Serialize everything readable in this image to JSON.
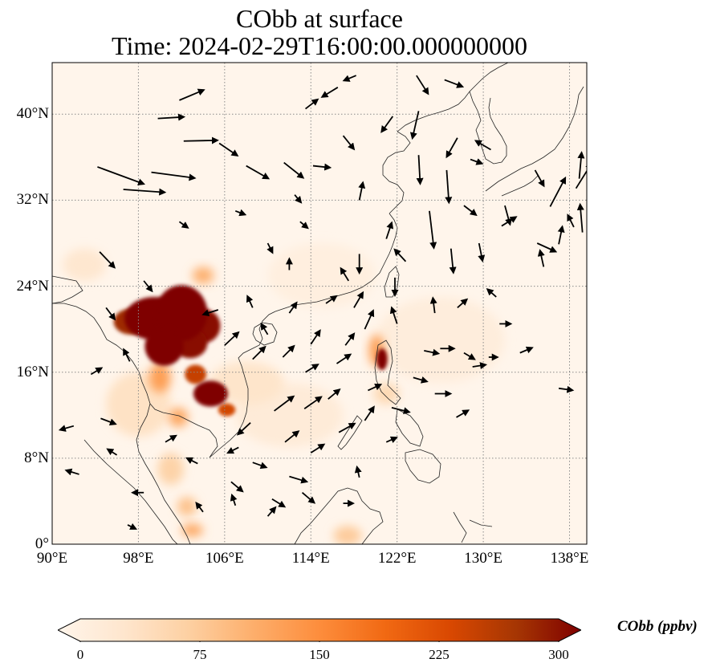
{
  "title": {
    "line1": "CObb at surface",
    "line2": "Time: 2024-02-29T16:00:00.000000000"
  },
  "map": {
    "lon_range": [
      90,
      139.6
    ],
    "lat_range": [
      0,
      44.8
    ],
    "lon_ticks": [
      {
        "value": 90,
        "label": "90°E"
      },
      {
        "value": 98,
        "label": "98°E"
      },
      {
        "value": 106,
        "label": "106°E"
      },
      {
        "value": 114,
        "label": "114°E"
      },
      {
        "value": 122,
        "label": "122°E"
      },
      {
        "value": 130,
        "label": "130°E"
      },
      {
        "value": 138,
        "label": "138°E"
      }
    ],
    "lat_ticks": [
      {
        "value": 0,
        "label": "0°"
      },
      {
        "value": 8,
        "label": "8°N"
      },
      {
        "value": 16,
        "label": "16°N"
      },
      {
        "value": 24,
        "label": "24°N"
      },
      {
        "value": 32,
        "label": "32°N"
      },
      {
        "value": 40,
        "label": "40°N"
      }
    ],
    "hotspots": [
      {
        "lon": 99.5,
        "lat": 21.0,
        "rlon": 2.8,
        "rlat": 2.0,
        "value": 300
      },
      {
        "lon": 102.0,
        "lat": 21.5,
        "rlon": 2.4,
        "rlat": 2.6,
        "value": 300
      },
      {
        "lon": 104.0,
        "lat": 20.3,
        "rlon": 1.6,
        "rlat": 1.6,
        "value": 290
      },
      {
        "lon": 97.3,
        "lat": 20.7,
        "rlon": 1.6,
        "rlat": 1.2,
        "value": 270
      },
      {
        "lon": 100.4,
        "lat": 18.4,
        "rlon": 1.8,
        "rlat": 1.8,
        "value": 300
      },
      {
        "lon": 102.8,
        "lat": 18.7,
        "rlon": 1.6,
        "rlat": 1.4,
        "value": 290
      },
      {
        "lon": 104.7,
        "lat": 14.0,
        "rlon": 1.6,
        "rlat": 1.2,
        "value": 300
      },
      {
        "lon": 103.3,
        "lat": 15.8,
        "rlon": 1.0,
        "rlat": 0.9,
        "value": 240
      },
      {
        "lon": 106.2,
        "lat": 12.5,
        "rlon": 0.8,
        "rlat": 0.6,
        "value": 230
      },
      {
        "lon": 100.0,
        "lat": 15.5,
        "rlon": 1.0,
        "rlat": 1.4,
        "value": 130
      },
      {
        "lon": 101.7,
        "lat": 11.8,
        "rlon": 0.9,
        "rlat": 0.9,
        "value": 120
      },
      {
        "lon": 104.0,
        "lat": 25.0,
        "rlon": 1.0,
        "rlat": 0.8,
        "value": 110
      },
      {
        "lon": 120.6,
        "lat": 17.2,
        "rlon": 0.5,
        "rlat": 1.0,
        "value": 300
      },
      {
        "lon": 120.1,
        "lat": 18.0,
        "rlon": 0.7,
        "rlat": 1.5,
        "value": 130
      },
      {
        "lon": 101.0,
        "lat": 7.0,
        "rlon": 1.2,
        "rlat": 1.5,
        "value": 70
      },
      {
        "lon": 102.5,
        "lat": 3.5,
        "rlon": 0.9,
        "rlat": 0.9,
        "value": 90
      },
      {
        "lon": 103.0,
        "lat": 1.3,
        "rlon": 1.0,
        "rlat": 0.6,
        "value": 120
      },
      {
        "lon": 117.4,
        "lat": 0.8,
        "rlon": 1.3,
        "rlat": 0.9,
        "value": 80
      },
      {
        "lon": 121.0,
        "lat": 14.0,
        "rlon": 1.2,
        "rlat": 1.0,
        "value": 60
      },
      {
        "lon": 108.0,
        "lat": 15.0,
        "rlon": 3.5,
        "rlat": 2.0,
        "value": 40
      },
      {
        "lon": 98.0,
        "lat": 13.0,
        "rlon": 3.0,
        "rlat": 3.0,
        "value": 45
      },
      {
        "lon": 112.0,
        "lat": 12.0,
        "rlon": 5.0,
        "rlat": 3.0,
        "value": 25
      },
      {
        "lon": 126.0,
        "lat": 19.0,
        "rlon": 6.0,
        "rlat": 4.0,
        "value": 20
      },
      {
        "lon": 93.0,
        "lat": 26.0,
        "rlon": 2.0,
        "rlat": 1.5,
        "value": 35
      },
      {
        "lon": 115.0,
        "lat": 25.0,
        "rlon": 5.0,
        "rlat": 3.0,
        "value": 15
      }
    ],
    "wind_vectors": [
      {
        "lon": 94.2,
        "lat": 35.1,
        "u": 6.5,
        "v": -2.4
      },
      {
        "lon": 99.2,
        "lat": 34.6,
        "u": 6.0,
        "v": -0.8
      },
      {
        "lon": 96.6,
        "lat": 33.0,
        "u": 5.7,
        "v": -0.4
      },
      {
        "lon": 99.8,
        "lat": 39.6,
        "u": 3.3,
        "v": 0.2
      },
      {
        "lon": 102.2,
        "lat": 37.5,
        "u": 4.5,
        "v": 0.1
      },
      {
        "lon": 101.8,
        "lat": 41.3,
        "u": 3.1,
        "v": 1.3
      },
      {
        "lon": 94.4,
        "lat": 27.2,
        "u": 1.8,
        "v": -1.9
      },
      {
        "lon": 105.5,
        "lat": 37.3,
        "u": 2.2,
        "v": -1.5
      },
      {
        "lon": 108.0,
        "lat": 35.2,
        "u": 2.8,
        "v": -1.6
      },
      {
        "lon": 111.5,
        "lat": 35.5,
        "u": 2.4,
        "v": -1.9
      },
      {
        "lon": 114.2,
        "lat": 35.2,
        "u": 1.9,
        "v": -0.2
      },
      {
        "lon": 117.0,
        "lat": 38.0,
        "u": 1.2,
        "v": -1.5
      },
      {
        "lon": 113.5,
        "lat": 40.5,
        "u": 1.3,
        "v": 1.0
      },
      {
        "lon": 116.5,
        "lat": 42.5,
        "u": -1.8,
        "v": -1.1
      },
      {
        "lon": 118.2,
        "lat": 43.6,
        "u": -1.2,
        "v": -0.5
      },
      {
        "lon": 121.6,
        "lat": 39.8,
        "u": -1.3,
        "v": -1.8
      },
      {
        "lon": 124.0,
        "lat": 40.3,
        "u": -0.8,
        "v": -3.5
      },
      {
        "lon": 123.8,
        "lat": 43.6,
        "u": 1.4,
        "v": -2.2
      },
      {
        "lon": 126.4,
        "lat": 43.2,
        "u": 2.1,
        "v": -0.8
      },
      {
        "lon": 126.6,
        "lat": 34.8,
        "u": 0.3,
        "v": -4.3
      },
      {
        "lon": 125.0,
        "lat": 31.0,
        "u": 0.6,
        "v": -5.0
      },
      {
        "lon": 124.0,
        "lat": 36.2,
        "u": 0.2,
        "v": -3.7
      },
      {
        "lon": 127.6,
        "lat": 37.8,
        "u": -1.3,
        "v": -2.3
      },
      {
        "lon": 128.8,
        "lat": 35.8,
        "u": 1.1,
        "v": -0.4
      },
      {
        "lon": 127.0,
        "lat": 27.5,
        "u": 0.3,
        "v": -3.0
      },
      {
        "lon": 129.6,
        "lat": 28.0,
        "u": 0.4,
        "v": -2.0
      },
      {
        "lon": 128.2,
        "lat": 31.5,
        "u": 1.3,
        "v": -1.0
      },
      {
        "lon": 132.0,
        "lat": 31.5,
        "u": 0.6,
        "v": -2.2
      },
      {
        "lon": 130.7,
        "lat": 36.7,
        "u": -1.7,
        "v": 1.0
      },
      {
        "lon": 134.8,
        "lat": 34.8,
        "u": 1.0,
        "v": -1.8
      },
      {
        "lon": 135.0,
        "lat": 28.0,
        "u": 2.2,
        "v": -1.0
      },
      {
        "lon": 136.2,
        "lat": 31.4,
        "u": 2.0,
        "v": 3.8
      },
      {
        "lon": 138.6,
        "lat": 33.1,
        "u": 2.0,
        "v": 3.2
      },
      {
        "lon": 138.9,
        "lat": 34.0,
        "u": 0.3,
        "v": 3.3
      },
      {
        "lon": 137.0,
        "lat": 27.9,
        "u": 0.4,
        "v": 2.0
      },
      {
        "lon": 139.2,
        "lat": 29.0,
        "u": -0.3,
        "v": 3.6
      },
      {
        "lon": 138.4,
        "lat": 29.5,
        "u": -0.6,
        "v": 1.2
      },
      {
        "lon": 135.6,
        "lat": 25.8,
        "u": -0.4,
        "v": 1.8
      },
      {
        "lon": 131.7,
        "lat": 29.6,
        "u": 1.6,
        "v": 1.0
      },
      {
        "lon": 118.5,
        "lat": 32.0,
        "u": 0.4,
        "v": 2.0
      },
      {
        "lon": 118.5,
        "lat": 27.0,
        "u": 0.0,
        "v": -2.2
      },
      {
        "lon": 121.0,
        "lat": 28.4,
        "u": 0.6,
        "v": 1.8
      },
      {
        "lon": 121.8,
        "lat": 24.8,
        "u": 0.0,
        "v": -2.0
      },
      {
        "lon": 122.8,
        "lat": 26.3,
        "u": -1.2,
        "v": 1.3
      },
      {
        "lon": 119.0,
        "lat": 20.0,
        "u": 1.0,
        "v": 2.2
      },
      {
        "lon": 118.0,
        "lat": 22.0,
        "u": 1.0,
        "v": 1.7
      },
      {
        "lon": 117.2,
        "lat": 18.5,
        "u": 0.9,
        "v": 1.2
      },
      {
        "lon": 112.0,
        "lat": 21.5,
        "u": 0.7,
        "v": 1.0
      },
      {
        "lon": 110.0,
        "lat": 19.5,
        "u": -0.6,
        "v": 1.0
      },
      {
        "lon": 108.6,
        "lat": 17.2,
        "u": 1.4,
        "v": 1.4
      },
      {
        "lon": 111.4,
        "lat": 17.4,
        "u": 1.2,
        "v": 1.2
      },
      {
        "lon": 113.5,
        "lat": 16.0,
        "u": 1.3,
        "v": 0.8
      },
      {
        "lon": 114.0,
        "lat": 18.6,
        "u": 1.0,
        "v": 1.5
      },
      {
        "lon": 116.4,
        "lat": 16.8,
        "u": 1.5,
        "v": 1.0
      },
      {
        "lon": 108.4,
        "lat": 11.3,
        "u": -1.4,
        "v": -1.3
      },
      {
        "lon": 110.6,
        "lat": 12.4,
        "u": 2.4,
        "v": 1.8
      },
      {
        "lon": 113.4,
        "lat": 12.6,
        "u": 2.0,
        "v": 1.4
      },
      {
        "lon": 115.6,
        "lat": 13.5,
        "u": 1.2,
        "v": 1.0
      },
      {
        "lon": 111.6,
        "lat": 9.5,
        "u": 1.5,
        "v": 1.2
      },
      {
        "lon": 114.0,
        "lat": 8.5,
        "u": 1.4,
        "v": 0.9
      },
      {
        "lon": 116.6,
        "lat": 10.4,
        "u": 1.8,
        "v": 1.0
      },
      {
        "lon": 112.0,
        "lat": 6.3,
        "u": 2.0,
        "v": -0.6
      },
      {
        "lon": 108.6,
        "lat": 7.6,
        "u": 1.4,
        "v": -0.5
      },
      {
        "lon": 106.6,
        "lat": 5.8,
        "u": 1.2,
        "v": -1.0
      },
      {
        "lon": 110.4,
        "lat": 4.2,
        "u": 1.3,
        "v": -0.8
      },
      {
        "lon": 113.2,
        "lat": 4.8,
        "u": 1.3,
        "v": -1.1
      },
      {
        "lon": 107.3,
        "lat": 9.0,
        "u": -1.0,
        "v": -0.5
      },
      {
        "lon": 110.0,
        "lat": 2.6,
        "u": 0.7,
        "v": 0.8
      },
      {
        "lon": 107.0,
        "lat": 3.6,
        "u": -0.3,
        "v": 0.9
      },
      {
        "lon": 117.0,
        "lat": 3.8,
        "u": 0.8,
        "v": 0.0
      },
      {
        "lon": 118.5,
        "lat": 6.2,
        "u": -0.2,
        "v": 0.9
      },
      {
        "lon": 119.0,
        "lat": 11.5,
        "u": 1.0,
        "v": 1.5
      },
      {
        "lon": 121.5,
        "lat": 12.7,
        "u": 2.0,
        "v": -0.5
      },
      {
        "lon": 123.5,
        "lat": 15.5,
        "u": 1.4,
        "v": -0.4
      },
      {
        "lon": 124.5,
        "lat": 18.0,
        "u": 1.5,
        "v": -0.3
      },
      {
        "lon": 125.5,
        "lat": 14.0,
        "u": 1.7,
        "v": 0.0
      },
      {
        "lon": 126.0,
        "lat": 18.2,
        "u": 1.4,
        "v": 0.0
      },
      {
        "lon": 128.2,
        "lat": 17.8,
        "u": 1.0,
        "v": -0.6
      },
      {
        "lon": 129.0,
        "lat": 16.5,
        "u": 1.3,
        "v": 0.2
      },
      {
        "lon": 127.5,
        "lat": 11.8,
        "u": 1.2,
        "v": 0.7
      },
      {
        "lon": 130.5,
        "lat": 17.4,
        "u": 0.6,
        "v": 0.0
      },
      {
        "lon": 131.5,
        "lat": 20.5,
        "u": 1.0,
        "v": 0.0
      },
      {
        "lon": 133.4,
        "lat": 17.8,
        "u": 1.2,
        "v": 0.5
      },
      {
        "lon": 137.0,
        "lat": 14.5,
        "u": 1.4,
        "v": -0.2
      },
      {
        "lon": 131.2,
        "lat": 23.0,
        "u": -0.8,
        "v": 0.7
      },
      {
        "lon": 125.5,
        "lat": 21.5,
        "u": -0.2,
        "v": 1.6
      },
      {
        "lon": 122.0,
        "lat": 20.5,
        "u": -0.6,
        "v": 1.8
      },
      {
        "lon": 127.6,
        "lat": 22.0,
        "u": 0.9,
        "v": 0.8
      },
      {
        "lon": 117.5,
        "lat": 24.5,
        "u": -0.8,
        "v": 1.3
      },
      {
        "lon": 115.4,
        "lat": 22.4,
        "u": 1.0,
        "v": 0.7
      },
      {
        "lon": 112.0,
        "lat": 25.5,
        "u": 0.0,
        "v": 1.0
      },
      {
        "lon": 108.6,
        "lat": 22.0,
        "u": -0.5,
        "v": 1.1
      },
      {
        "lon": 106.0,
        "lat": 18.5,
        "u": 1.6,
        "v": 1.5
      },
      {
        "lon": 105.4,
        "lat": 21.8,
        "u": -1.6,
        "v": -0.5
      },
      {
        "lon": 98.5,
        "lat": 24.5,
        "u": 0.8,
        "v": -1.0
      },
      {
        "lon": 95.0,
        "lat": 22.0,
        "u": 0.9,
        "v": -1.2
      },
      {
        "lon": 97.2,
        "lat": 17.0,
        "u": -0.6,
        "v": 1.2
      },
      {
        "lon": 93.6,
        "lat": 15.8,
        "u": 1.0,
        "v": 0.6
      },
      {
        "lon": 94.5,
        "lat": 11.7,
        "u": 1.6,
        "v": -0.6
      },
      {
        "lon": 92.0,
        "lat": 11.0,
        "u": -1.4,
        "v": -0.4
      },
      {
        "lon": 96.0,
        "lat": 8.3,
        "u": -0.8,
        "v": 0.5
      },
      {
        "lon": 92.5,
        "lat": 6.5,
        "u": -1.3,
        "v": 0.4
      },
      {
        "lon": 98.5,
        "lat": 4.8,
        "u": -1.0,
        "v": 0.0
      },
      {
        "lon": 97.0,
        "lat": 1.8,
        "u": 0.6,
        "v": -0.3
      },
      {
        "lon": 103.5,
        "lat": 7.5,
        "u": -1.0,
        "v": 0.5
      },
      {
        "lon": 104.0,
        "lat": 3.0,
        "u": -0.6,
        "v": 0.8
      },
      {
        "lon": 100.5,
        "lat": 9.5,
        "u": 1.0,
        "v": 0.6
      },
      {
        "lon": 119.3,
        "lat": 14.3,
        "u": 1.3,
        "v": 0.6
      },
      {
        "lon": 121.0,
        "lat": 9.5,
        "u": 0.9,
        "v": 0.4
      },
      {
        "lon": 101.8,
        "lat": 30.0,
        "u": 0.7,
        "v": -0.5
      },
      {
        "lon": 107.0,
        "lat": 31.0,
        "u": 0.8,
        "v": -0.3
      },
      {
        "lon": 110.0,
        "lat": 28.0,
        "u": 0.4,
        "v": -0.8
      },
      {
        "lon": 113.0,
        "lat": 30.0,
        "u": 0.6,
        "v": -0.5
      },
      {
        "lon": 112.5,
        "lat": 32.5,
        "u": 0.5,
        "v": -0.6
      }
    ]
  },
  "colorbar": {
    "label": "CObb (ppbv)",
    "min": 0,
    "max": 300,
    "stops": [
      "#fff5eb",
      "#fee6ce",
      "#fdd0a2",
      "#fdae6b",
      "#fd8d3c",
      "#f16913",
      "#d94801",
      "#a63603",
      "#7f0000"
    ],
    "ticks": [
      {
        "value": 0,
        "label": "0"
      },
      {
        "value": 75,
        "label": "75"
      },
      {
        "value": 150,
        "label": "150"
      },
      {
        "value": 225,
        "label": "225"
      },
      {
        "value": 300,
        "label": "300"
      }
    ]
  }
}
